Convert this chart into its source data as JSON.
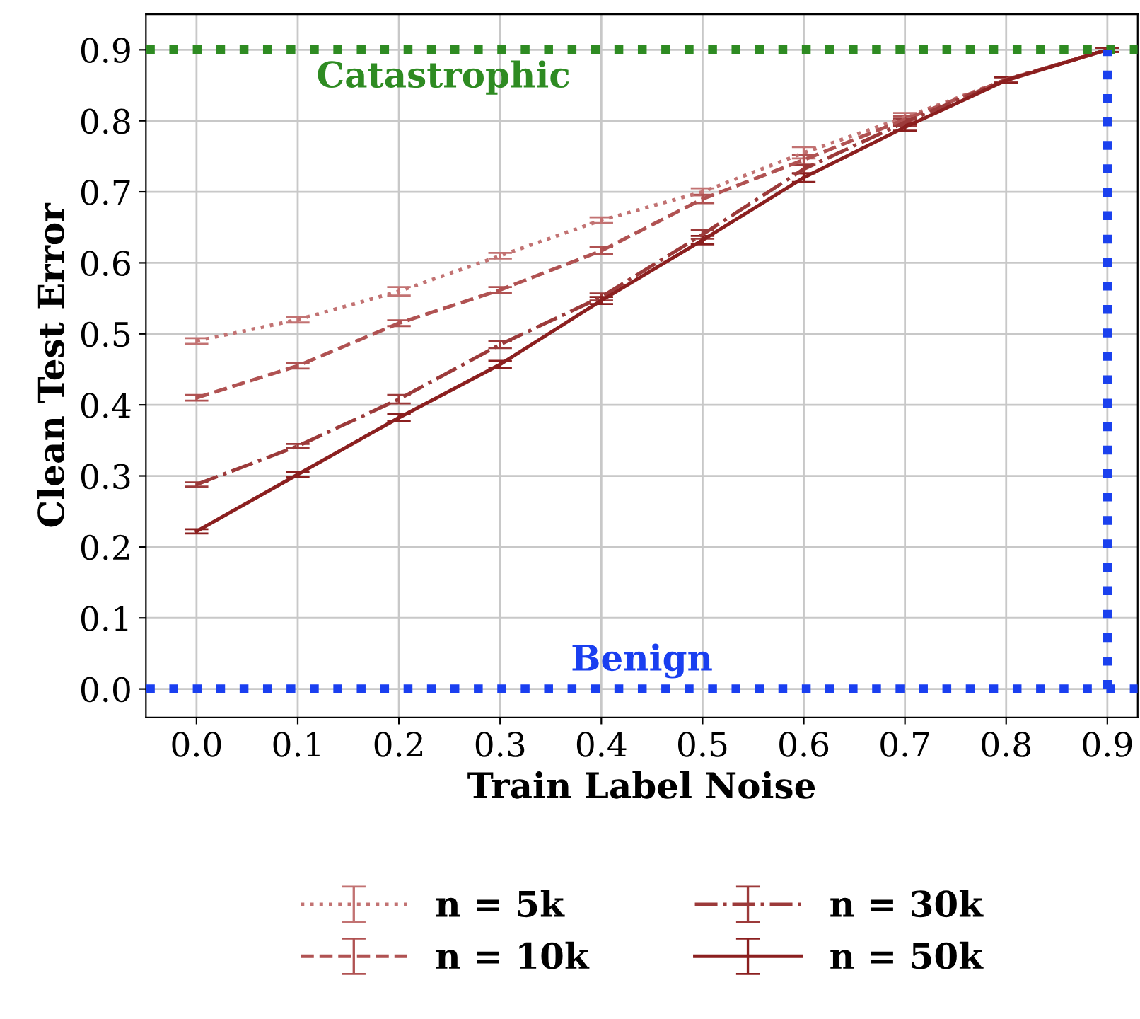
{
  "chart_data": {
    "type": "line",
    "xlabel": "Train Label Noise",
    "ylabel": "Clean Test Error",
    "x": [
      0.0,
      0.1,
      0.2,
      0.3,
      0.4,
      0.5,
      0.6,
      0.7,
      0.8,
      0.9
    ],
    "series": [
      {
        "name": "n = 5k",
        "color": "#c27272",
        "line_style": "dotted",
        "values": [
          0.49,
          0.52,
          0.56,
          0.61,
          0.66,
          0.7,
          0.755,
          0.805,
          0.858,
          0.9
        ],
        "errors": [
          0.004,
          0.004,
          0.006,
          0.004,
          0.004,
          0.005,
          0.008,
          0.006,
          0.004,
          0.003
        ]
      },
      {
        "name": "n = 10k",
        "color": "#b05252",
        "line_style": "dashed",
        "values": [
          0.41,
          0.455,
          0.515,
          0.562,
          0.617,
          0.69,
          0.745,
          0.802,
          0.858,
          0.9
        ],
        "errors": [
          0.004,
          0.004,
          0.004,
          0.004,
          0.005,
          0.006,
          0.007,
          0.005,
          0.004,
          0.003
        ]
      },
      {
        "name": "n = 30k",
        "color": "#9c3a3a",
        "line_style": "dashdot",
        "values": [
          0.288,
          0.342,
          0.408,
          0.485,
          0.552,
          0.64,
          0.732,
          0.798,
          0.858,
          0.9
        ],
        "errors": [
          0.003,
          0.003,
          0.006,
          0.005,
          0.005,
          0.006,
          0.006,
          0.005,
          0.004,
          0.003
        ]
      },
      {
        "name": "n = 50k",
        "color": "#8b1f1f",
        "line_style": "solid",
        "values": [
          0.222,
          0.302,
          0.382,
          0.457,
          0.547,
          0.632,
          0.72,
          0.791,
          0.857,
          0.9
        ],
        "errors": [
          0.003,
          0.003,
          0.005,
          0.005,
          0.005,
          0.006,
          0.006,
          0.005,
          0.004,
          0.003
        ]
      }
    ],
    "ref_lines": [
      {
        "axis": "y",
        "value": 0.9,
        "label": "Catastrophic",
        "color": "#2e8b22",
        "line_style": "dotted"
      },
      {
        "axis": "y",
        "value": 0.0,
        "label": "Benign",
        "color": "#1a3ff0",
        "line_style": "dotted"
      },
      {
        "axis": "x",
        "value": 0.9,
        "color": "#1b41ee",
        "line_style": "dotted"
      }
    ],
    "xlim": [
      -0.05,
      0.93
    ],
    "ylim": [
      -0.04,
      0.95
    ],
    "xticks": [
      {
        "value": 0.0,
        "label": "0.0"
      },
      0.1,
      0.2,
      0.3,
      0.4,
      0.5,
      0.6,
      0.7,
      0.8,
      0.9
    ],
    "yticks": [
      {
        "value": 0.0,
        "label": "0.0"
      },
      0.1,
      0.2,
      0.3,
      0.4,
      0.5,
      0.6,
      0.7,
      0.8,
      0.9
    ],
    "grid": true,
    "legend": "bottom",
    "marker": "none"
  }
}
